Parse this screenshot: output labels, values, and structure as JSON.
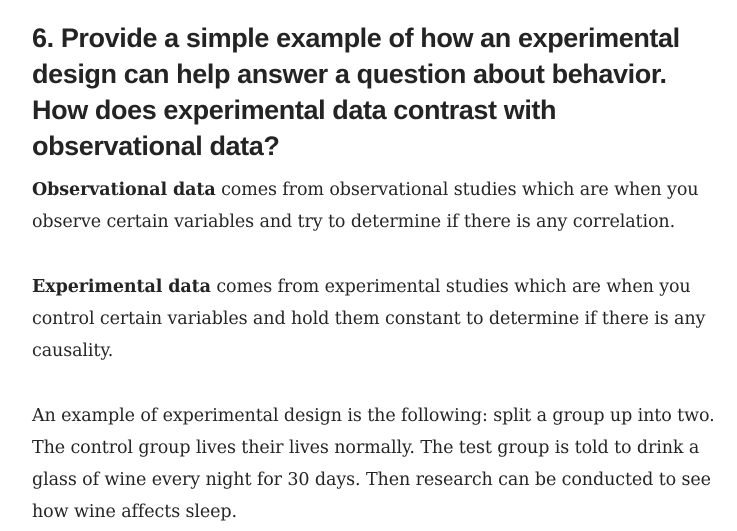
{
  "article": {
    "heading": "6. Provide a simple example of how an experimental design can help answer a question about behavior. How does experimental data contrast with observational data?",
    "paragraphs": [
      {
        "bold": "Observational data",
        "text": " comes from observational studies which are when you observe certain variables and try to determine if there is any correlation."
      },
      {
        "bold": "Experimental data",
        "text": " comes from experimental studies which are when you control certain variables and hold them constant to determine if there is any causality."
      },
      {
        "text": "An example of experimental design is the following: split a group up into two. The control group lives their lives normally. The test group is told to drink a glass of wine every night for 30 days. Then research can be conducted to see how wine affects sleep."
      }
    ]
  }
}
